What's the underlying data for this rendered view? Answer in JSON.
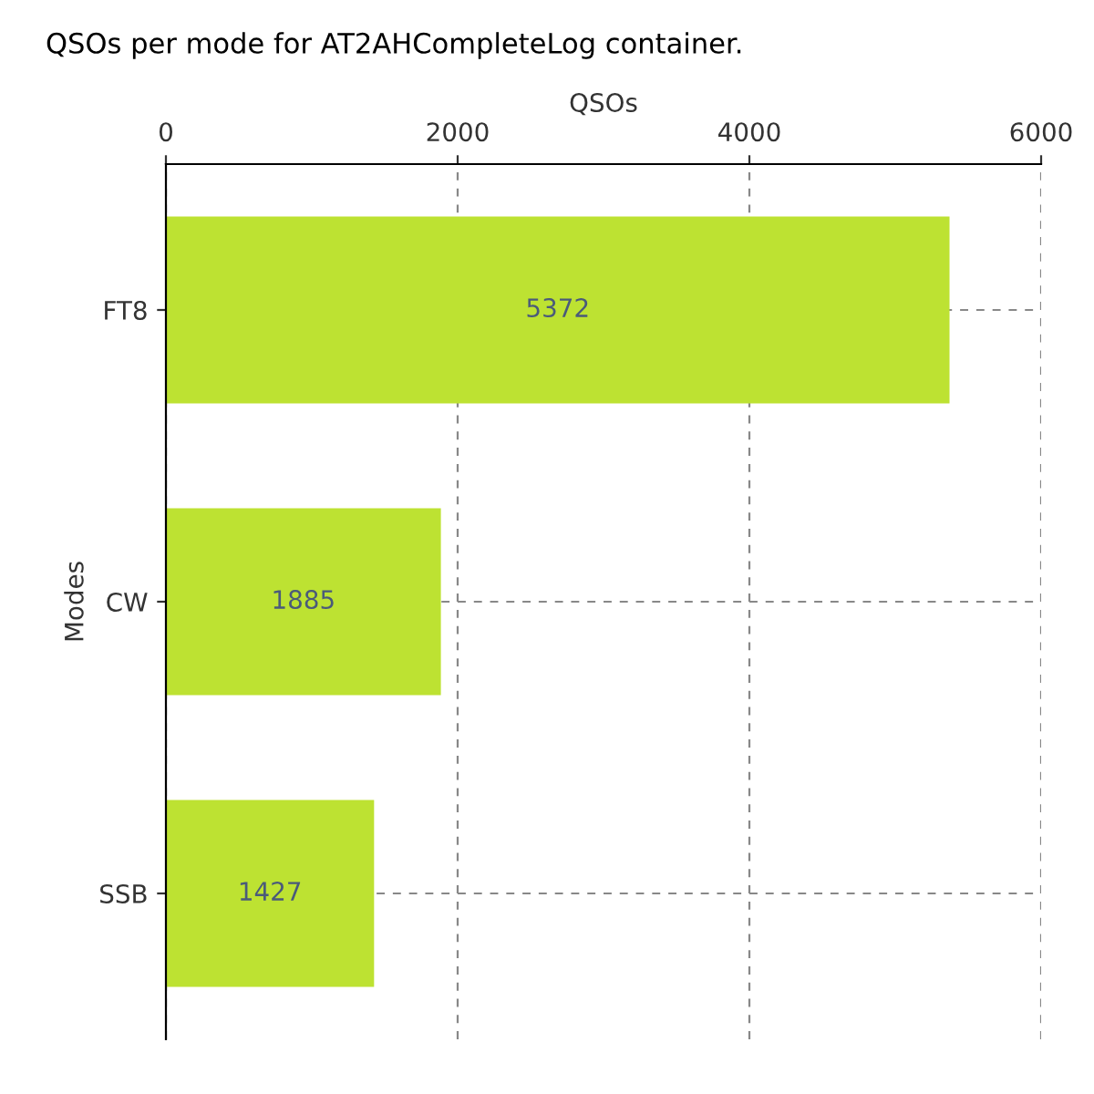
{
  "chart_data": {
    "type": "bar",
    "orientation": "horizontal",
    "title": "QSOs per mode for AT2AHCompleteLog container.",
    "xlabel": "QSOs",
    "ylabel": "Modes",
    "categories": [
      "FT8",
      "CW",
      "SSB"
    ],
    "values": [
      5372,
      1885,
      1427
    ],
    "color": "#bde232",
    "xlim": [
      0,
      6000
    ],
    "xticks": [
      0,
      2000,
      4000,
      6000
    ],
    "grid": true,
    "data_labels": true
  }
}
